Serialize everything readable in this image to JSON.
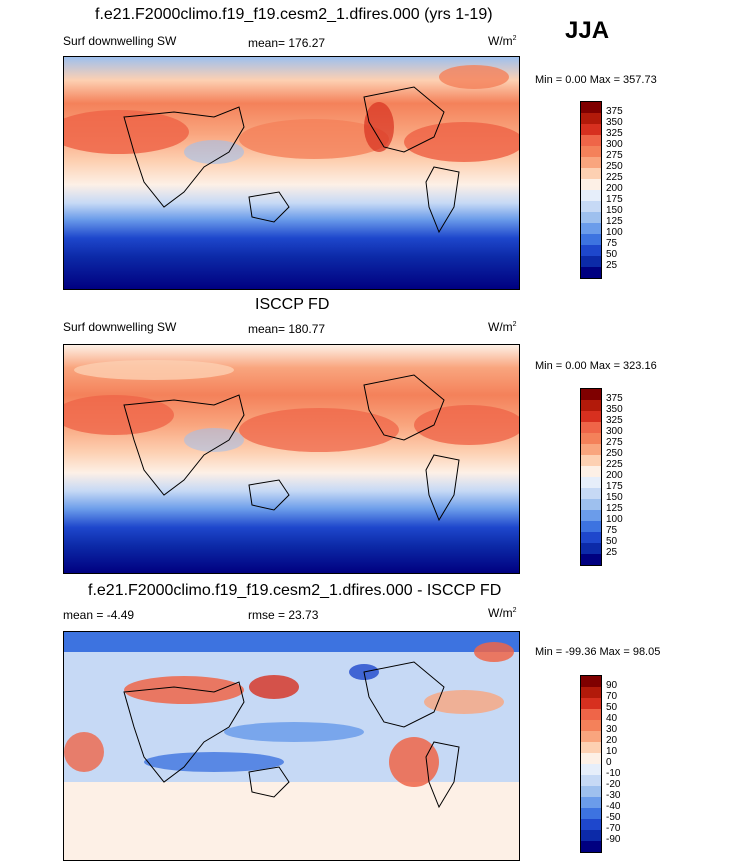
{
  "season_label": "JJA",
  "panels": [
    {
      "title": "f.e21.F2000climo.f19_f19.cesm2_1.dfires.000 (yrs 1-19)",
      "left_label": "Surf downwelling SW",
      "center_label": "mean= 176.27",
      "units_base": "W/m",
      "units_exp": "2",
      "minmax": "Min =   0.00 Max = 357.73"
    },
    {
      "title": "ISCCP FD",
      "left_label": "Surf downwelling SW",
      "center_label": "mean= 180.77",
      "units_base": "W/m",
      "units_exp": "2",
      "minmax": "Min =   0.00 Max = 323.16"
    },
    {
      "title": "f.e21.F2000climo.f19_f19.cesm2_1.dfires.000 - ISCCP FD",
      "left_label": "mean =  -4.49",
      "center_label": "rmse =  23.73",
      "units_base": "W/m",
      "units_exp": "2",
      "minmax": "Min = -99.36 Max =  98.05"
    }
  ],
  "colorbars": {
    "abs_labels": [
      "375",
      "350",
      "325",
      "300",
      "275",
      "250",
      "225",
      "200",
      "175",
      "150",
      "125",
      "100",
      "75",
      "50",
      "25"
    ],
    "diff_labels": [
      "90",
      "70",
      "50",
      "40",
      "30",
      "20",
      "10",
      "0",
      "-10",
      "-20",
      "-30",
      "-40",
      "-50",
      "-70",
      "-90"
    ],
    "colors": [
      "#7f0000",
      "#b21a0a",
      "#d7301f",
      "#ef6548",
      "#f4815a",
      "#f9a57e",
      "#fdd0b2",
      "#fdf0e6",
      "#e6eefa",
      "#c6d9f5",
      "#9ec0ee",
      "#6b9cea",
      "#3d73e0",
      "#1e47cc",
      "#0c2aa8",
      "#000080"
    ]
  },
  "chart_data": [
    {
      "type": "heatmap",
      "title": "f.e21.F2000climo.f19_f19.cesm2_1.dfires.000 (yrs 1-19)",
      "variable": "Surf downwelling SW",
      "units": "W/m2",
      "season": "JJA",
      "mean": 176.27,
      "min": 0.0,
      "max": 357.73,
      "contour_levels": [
        25,
        50,
        75,
        100,
        125,
        150,
        175,
        200,
        225,
        250,
        275,
        300,
        325,
        350,
        375
      ]
    },
    {
      "type": "heatmap",
      "title": "ISCCP FD",
      "variable": "Surf downwelling SW",
      "units": "W/m2",
      "season": "JJA",
      "mean": 180.77,
      "min": 0.0,
      "max": 323.16,
      "contour_levels": [
        25,
        50,
        75,
        100,
        125,
        150,
        175,
        200,
        225,
        250,
        275,
        300,
        325,
        350,
        375
      ]
    },
    {
      "type": "heatmap",
      "title": "f.e21.F2000climo.f19_f19.cesm2_1.dfires.000 - ISCCP FD",
      "units": "W/m2",
      "season": "JJA",
      "mean": -4.49,
      "rmse": 23.73,
      "min": -99.36,
      "max": 98.05,
      "contour_levels": [
        -90,
        -70,
        -50,
        -40,
        -30,
        -20,
        -10,
        0,
        10,
        20,
        30,
        40,
        50,
        70,
        90
      ]
    }
  ]
}
